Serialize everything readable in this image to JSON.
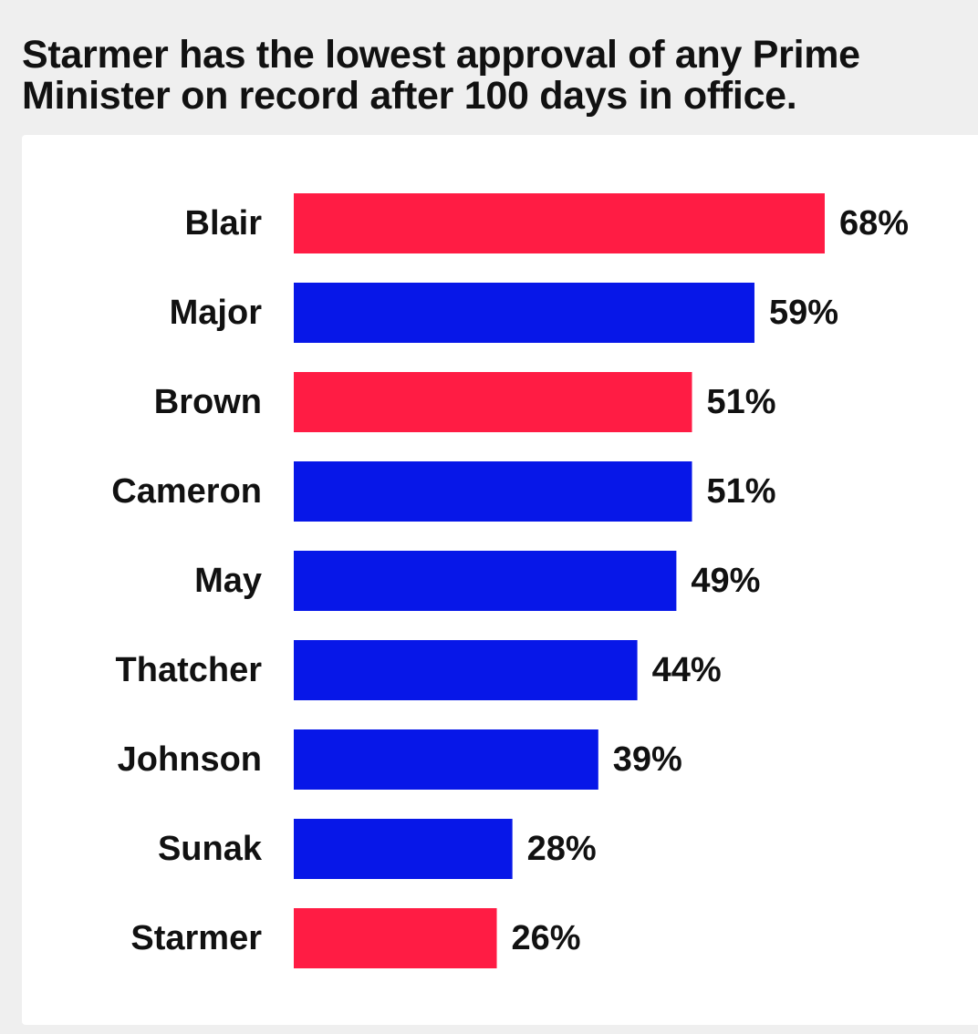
{
  "title": {
    "line1": "Starmer has the lowest approval of any Prime",
    "line2": "Minister on record after 100 days in office."
  },
  "colors": {
    "labour": "#ff1c44",
    "conservative": "#0717e8",
    "text": "#111111",
    "background": "#efefef",
    "panel": "#ffffff"
  },
  "chart_data": {
    "type": "bar",
    "orientation": "horizontal",
    "title": "Starmer has the lowest approval of any Prime Minister on record after 100 days in office.",
    "xlabel": "",
    "ylabel": "",
    "grid": false,
    "legend": "none",
    "categories": [
      "Blair",
      "Major",
      "Brown",
      "Cameron",
      "May",
      "Thatcher",
      "Johnson",
      "Sunak",
      "Starmer"
    ],
    "values": [
      68,
      59,
      51,
      51,
      49,
      44,
      39,
      28,
      26
    ],
    "value_labels": [
      "68%",
      "59%",
      "51%",
      "51%",
      "49%",
      "44%",
      "39%",
      "28%",
      "26%"
    ],
    "bar_colors": [
      "#ff1c44",
      "#0717e8",
      "#ff1c44",
      "#0717e8",
      "#0717e8",
      "#0717e8",
      "#0717e8",
      "#0717e8",
      "#ff1c44"
    ],
    "xlim": [
      0,
      68
    ]
  }
}
